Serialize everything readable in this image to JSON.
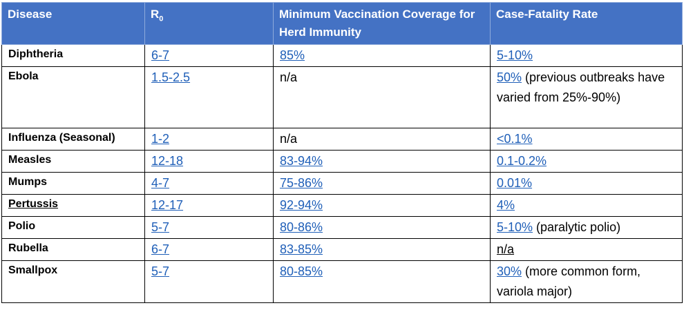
{
  "headers": {
    "disease": "Disease",
    "r0_base": "R",
    "r0_sub": "0",
    "coverage": "Minimum Vaccination Coverage for Herd Immunity",
    "cfr": "Case-Fatality Rate"
  },
  "rows": [
    {
      "disease": "Diphtheria",
      "r0": "6-7",
      "coverage": "85%",
      "cfr": "5-10%",
      "cfr_note": ""
    },
    {
      "disease": "Ebola",
      "r0": "1.5-2.5",
      "coverage": "n/a",
      "cfr": "50%",
      "cfr_note": " (previous outbreaks have varied from 25%-90%)"
    },
    {
      "disease": "Influenza (Seasonal)",
      "r0": "1-2",
      "coverage": "n/a",
      "cfr": "<0.1%",
      "cfr_note": ""
    },
    {
      "disease": "Measles",
      "r0": "12-18",
      "coverage": "83-94%",
      "cfr": "0.1-0.2%",
      "cfr_note": ""
    },
    {
      "disease": "Mumps",
      "r0": "4-7",
      "coverage": "75-86%",
      "cfr": "0.01%",
      "cfr_note": ""
    },
    {
      "disease": "Pertussis",
      "r0": "12-17",
      "coverage": "92-94%",
      "cfr": "4%",
      "cfr_note": ""
    },
    {
      "disease": "Polio",
      "r0": "5-7",
      "coverage": "80-86%",
      "cfr": "5-10%",
      "cfr_note": " (paralytic polio)"
    },
    {
      "disease": "Rubella",
      "r0": "6-7",
      "coverage": "83-85%",
      "cfr": "n/a",
      "cfr_note": ""
    },
    {
      "disease": "Smallpox",
      "r0": "5-7",
      "coverage": "80-85%",
      "cfr": "30%",
      "cfr_note": " (more common form, variola major)"
    }
  ],
  "colors": {
    "header_bg": "#4472c4",
    "header_text": "#ffffff",
    "link": "#1f5fb8"
  }
}
